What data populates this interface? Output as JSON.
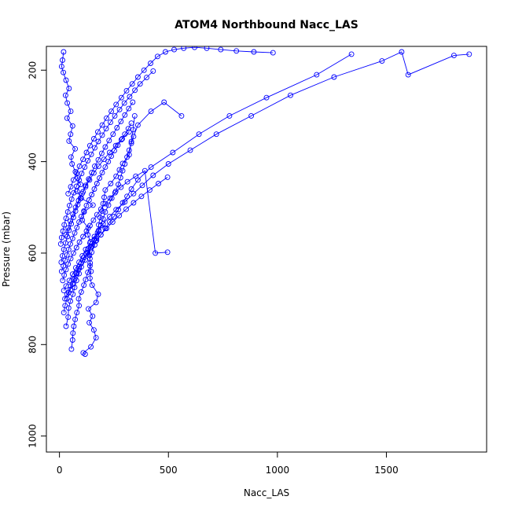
{
  "chart_data": {
    "type": "line",
    "title": "ATOM4 Northbound Nacc_LAS",
    "xlabel": "Nacc_LAS",
    "ylabel": "Pressure (mbar)",
    "xlim": [
      -60,
      1960
    ],
    "ylim": [
      1035,
      148
    ],
    "y_reversed": true,
    "grid": false,
    "legend": "none",
    "marker": "open-circle",
    "series_color": "#0000ff",
    "x_ticks": [
      0,
      500,
      1000,
      1500
    ],
    "y_ticks": [
      200,
      400,
      600,
      800,
      1000
    ],
    "series": [
      {
        "x": [
          118,
          109,
          144,
          168,
          158,
          137,
          152,
          133,
          168,
          178,
          150,
          140,
          145,
          141,
          138,
          131,
          142,
          130,
          132,
          105,
          113,
          154,
          100,
          81,
          97,
          84,
          73,
          58,
          53,
          72,
          44,
          51,
          60,
          35,
          52,
          36,
          28,
          44,
          30,
          18,
          10,
          14,
          19
        ],
        "y": [
          821,
          818,
          805,
          785,
          768,
          752,
          738,
          722,
          708,
          690,
          670,
          655,
          640,
          622,
          605,
          590,
          575,
          560,
          545,
          528,
          510,
          495,
          480,
          465,
          450,
          436,
          422,
          405,
          390,
          372,
          355,
          340,
          322,
          305,
          290,
          272,
          255,
          240,
          222,
          205,
          192,
          178,
          160
        ]
      },
      {
        "x": [
          55,
          60,
          62,
          66,
          72,
          80,
          90,
          88,
          100,
          112,
          120,
          130,
          140,
          140,
          148,
          162,
          170,
          180,
          180,
          186,
          195,
          200,
          205,
          210,
          235,
          260,
          275,
          290,
          320,
          330,
          338,
          345
        ],
        "y": [
          810,
          790,
          775,
          760,
          745,
          730,
          715,
          700,
          685,
          670,
          658,
          642,
          628,
          612,
          598,
          582,
          568,
          552,
          538,
          522,
          508,
          492,
          478,
          462,
          448,
          432,
          418,
          404,
          385,
          356,
          330,
          300
        ]
      },
      {
        "x": [
          30,
          40,
          42,
          50,
          62,
          70,
          78,
          90,
          100,
          118,
          130,
          145,
          160,
          175,
          190,
          200,
          210,
          225,
          240,
          258,
          270,
          280,
          290,
          300,
          310,
          320,
          330,
          340,
          360,
          420,
          480,
          560
        ],
        "y": [
          760,
          740,
          720,
          705,
          690,
          675,
          660,
          645,
          630,
          615,
          600,
          585,
          570,
          555,
          540,
          525,
          510,
          495,
          480,
          465,
          450,
          435,
          420,
          405,
          390,
          375,
          360,
          345,
          320,
          290,
          270,
          300
        ]
      },
      {
        "x": [
          25,
          35,
          50,
          60,
          70,
          80,
          90,
          100,
          110,
          130,
          150,
          170,
          190,
          210,
          230,
          250,
          270,
          290,
          310,
          330,
          360,
          420,
          520,
          640,
          780,
          950,
          1180,
          1340
        ],
        "y": [
          700,
          690,
          680,
          668,
          656,
          645,
          634,
          622,
          610,
          598,
          585,
          572,
          560,
          546,
          532,
          520,
          505,
          490,
          476,
          460,
          440,
          412,
          380,
          340,
          300,
          260,
          210,
          165
        ]
      },
      {
        "x": [
          20,
          30,
          45,
          60,
          75,
          90,
          105,
          120,
          140,
          160,
          180,
          200,
          230,
          260,
          300,
          340,
          380,
          430,
          500,
          600,
          720,
          880,
          1060,
          1260,
          1480,
          1570,
          1600,
          1810,
          1880
        ],
        "y": [
          682,
          672,
          660,
          646,
          632,
          620,
          606,
          592,
          578,
          564,
          550,
          536,
          520,
          505,
          488,
          470,
          452,
          430,
          405,
          375,
          340,
          300,
          255,
          215,
          180,
          160,
          210,
          168,
          165
        ]
      },
      {
        "x": [
          15,
          22,
          30,
          40,
          52,
          64,
          78,
          92,
          108,
          124,
          140,
          156,
          172,
          190,
          210,
          232,
          255,
          282,
          312,
          350,
          392,
          440,
          496
        ],
        "y": [
          660,
          648,
          636,
          624,
          612,
          600,
          588,
          576,
          564,
          552,
          540,
          528,
          516,
          504,
          492,
          480,
          468,
          456,
          444,
          432,
          420,
          600,
          598
        ]
      },
      {
        "x": [
          10,
          18,
          26,
          34,
          42,
          50,
          60,
          70,
          80,
          90,
          100,
          112,
          124,
          136,
          148,
          160,
          172,
          184,
          196,
          210,
          224,
          238,
          252,
          268,
          284,
          300,
          316,
          330
        ],
        "y": [
          640,
          628,
          616,
          604,
          592,
          580,
          568,
          556,
          544,
          532,
          520,
          508,
          496,
          484,
          472,
          460,
          448,
          436,
          424,
          412,
          400,
          388,
          376,
          364,
          352,
          340,
          328,
          316
        ]
      },
      {
        "x": [
          8,
          14,
          20,
          28,
          36,
          44,
          54,
          64,
          74,
          84,
          96,
          108,
          120,
          134,
          148,
          162,
          178,
          194,
          210,
          228,
          246,
          264,
          282,
          300,
          318,
          336
        ],
        "y": [
          620,
          606,
          592,
          578,
          564,
          550,
          536,
          522,
          508,
          494,
          480,
          466,
          452,
          438,
          424,
          410,
          396,
          382,
          368,
          354,
          340,
          326,
          312,
          298,
          284,
          270
        ]
      },
      {
        "x": [
          6,
          10,
          16,
          22,
          30,
          38,
          46,
          56,
          66,
          78,
          90,
          102,
          116,
          130,
          146,
          162,
          178,
          196,
          214,
          234,
          254,
          276,
          298,
          322,
          346,
          370,
          400,
          430
        ],
        "y": [
          580,
          566,
          552,
          538,
          524,
          510,
          496,
          482,
          468,
          454,
          440,
          426,
          412,
          398,
          384,
          370,
          356,
          342,
          328,
          314,
          300,
          286,
          272,
          258,
          244,
          230,
          216,
          202
        ]
      },
      {
        "x": [
          40,
          52,
          64,
          78,
          92,
          108,
          124,
          140,
          158,
          176,
          196,
          216,
          238,
          260,
          284,
          308,
          334,
          360,
          388,
          418,
          450,
          486,
          526,
          570,
          620,
          676,
          740,
          812,
          892,
          980
        ],
        "y": [
          470,
          455,
          440,
          425,
          410,
          395,
          380,
          365,
          350,
          335,
          320,
          305,
          290,
          275,
          260,
          245,
          230,
          215,
          200,
          185,
          170,
          160,
          155,
          152,
          150,
          152,
          155,
          158,
          160,
          162
        ]
      },
      {
        "x": [
          30,
          40,
          50,
          62,
          74,
          88,
          104,
          120,
          138,
          158,
          180,
          204,
          230,
          258,
          288,
          320
        ],
        "y": [
          560,
          545,
          530,
          515,
          500,
          485,
          470,
          455,
          440,
          425,
          410,
          395,
          380,
          365,
          350,
          335
        ]
      },
      {
        "x": [
          20,
          26,
          34,
          42,
          52,
          64,
          76,
          90,
          106,
          124,
          144,
          166,
          190,
          216,
          244,
          274,
          306,
          340,
          376,
          414,
          454,
          496
        ],
        "y": [
          730,
          715,
          700,
          686,
          672,
          658,
          644,
          630,
          616,
          602,
          588,
          574,
          560,
          546,
          532,
          518,
          504,
          490,
          476,
          462,
          448,
          434
        ]
      }
    ]
  }
}
